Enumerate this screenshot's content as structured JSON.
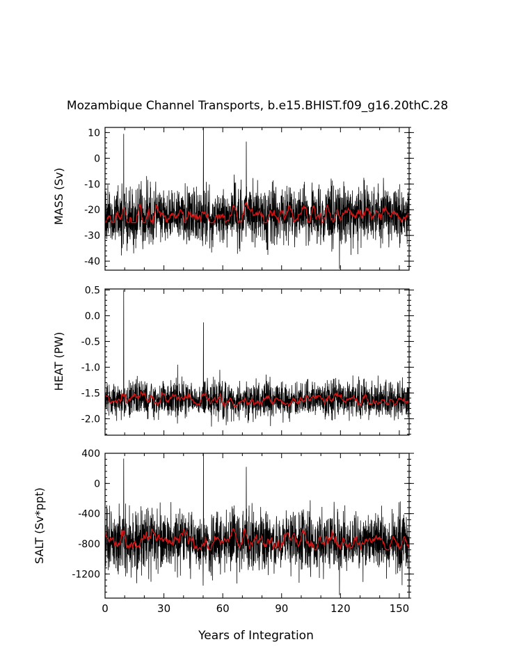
{
  "figure": {
    "title": "Mozambique Channel Transports, b.e15.BHIST.f09_g16.20thC.28",
    "xlabel": "Years of Integration"
  },
  "colors": {
    "monthly": "#000000",
    "smoothed": "#d01818",
    "axes": "#000000",
    "background": "#ffffff"
  },
  "chart_data": [
    {
      "type": "line",
      "panel": "mass",
      "ylabel": "MASS (Sv)",
      "xlim": [
        0,
        155
      ],
      "ylim": [
        -43.5,
        12
      ],
      "xticks": [
        "0",
        "30",
        "60",
        "90",
        "120",
        "150"
      ],
      "yticks": [
        "10",
        "0",
        "-10",
        "-20",
        "-30",
        "-40"
      ],
      "ytick_values": [
        10,
        0,
        -10,
        -20,
        -30,
        -40
      ],
      "grid": false,
      "series": [
        {
          "style": "monthly",
          "mean": -22,
          "spread": 6.5,
          "approx_range": [
            -43,
            12
          ]
        },
        {
          "style": "smoothed",
          "mean": -22,
          "approx_range": [
            -25,
            -17
          ]
        }
      ],
      "spikes": [
        [
          9.5,
          9.5
        ],
        [
          50.2,
          12
        ],
        [
          72,
          6.5
        ],
        [
          119.5,
          -43
        ]
      ]
    },
    {
      "type": "line",
      "panel": "heat",
      "ylabel": "HEAT (PW)",
      "xlim": [
        0,
        155
      ],
      "ylim": [
        -2.32,
        0.52
      ],
      "xticks": [
        "0",
        "30",
        "60",
        "90",
        "120",
        "150"
      ],
      "yticks": [
        "0.5",
        "0.0",
        "-0.5",
        "-1.0",
        "-1.5",
        "-2.0"
      ],
      "ytick_values": [
        0.5,
        0.0,
        -0.5,
        -1.0,
        -1.5,
        -2.0
      ],
      "grid": false,
      "series": [
        {
          "style": "monthly",
          "mean": -1.62,
          "spread": 0.2,
          "approx_range": [
            -2.3,
            0.5
          ]
        },
        {
          "style": "smoothed",
          "mean": -1.62,
          "approx_range": [
            -1.78,
            -1.38
          ]
        }
      ],
      "spikes": [
        [
          9.5,
          0.5
        ],
        [
          50.2,
          -0.13
        ],
        [
          37,
          -0.95
        ]
      ]
    },
    {
      "type": "line",
      "panel": "salt",
      "ylabel": "SALT (Sv*ppt)",
      "xlim": [
        0,
        155
      ],
      "ylim": [
        -1520,
        400
      ],
      "xticks": [
        "0",
        "30",
        "60",
        "90",
        "120",
        "150"
      ],
      "yticks": [
        "400",
        "0",
        "-400",
        "-800",
        "-1200"
      ],
      "ytick_values": [
        400,
        0,
        -400,
        -800,
        -1200
      ],
      "grid": false,
      "series": [
        {
          "style": "monthly",
          "mean": -770,
          "spread": 225,
          "approx_range": [
            -1500,
            400
          ]
        },
        {
          "style": "smoothed",
          "mean": -770,
          "approx_range": [
            -880,
            -600
          ]
        }
      ],
      "spikes": [
        [
          9.5,
          330
        ],
        [
          50.2,
          400
        ],
        [
          72,
          220
        ],
        [
          119.5,
          -1480
        ]
      ]
    }
  ]
}
